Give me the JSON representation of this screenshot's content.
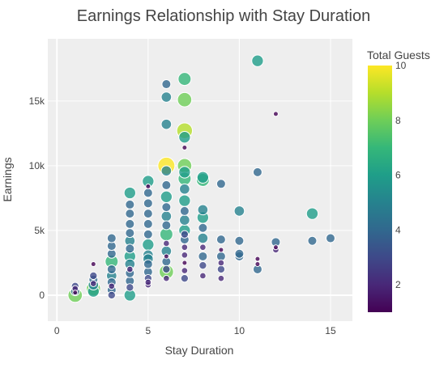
{
  "chart_data": {
    "type": "scatter",
    "title": "Earnings Relationship with Stay Duration",
    "xlabel": "Stay Duration",
    "ylabel": "Earnings",
    "xlim": [
      -0.5,
      16.2
    ],
    "ylim": [
      -2000,
      19800
    ],
    "x_ticks": [
      0,
      5,
      10,
      15
    ],
    "y_ticks": [
      {
        "value": 0,
        "label": "0"
      },
      {
        "value": 5000,
        "label": "5k"
      },
      {
        "value": 10000,
        "label": "10k"
      },
      {
        "value": 15000,
        "label": "15k"
      }
    ],
    "grid": true,
    "plot_background": "#eeeeee",
    "colorbar": {
      "title": "Total Guests",
      "min": 1,
      "max": 10,
      "ticks": [
        2,
        4,
        6,
        8,
        10
      ],
      "colorscale": "viridis"
    },
    "marker_size_encodes": "Total Guests",
    "points": [
      {
        "x": 1,
        "y": 0,
        "g": 8
      },
      {
        "x": 1,
        "y": 300,
        "g": 4
      },
      {
        "x": 1,
        "y": 500,
        "g": 2
      },
      {
        "x": 1,
        "y": 700,
        "g": 3
      },
      {
        "x": 1,
        "y": 200,
        "g": 1
      },
      {
        "x": 2,
        "y": 500,
        "g": 8
      },
      {
        "x": 2,
        "y": 800,
        "g": 5
      },
      {
        "x": 2,
        "y": 1200,
        "g": 4
      },
      {
        "x": 2,
        "y": 1500,
        "g": 3
      },
      {
        "x": 2,
        "y": 900,
        "g": 2
      },
      {
        "x": 2,
        "y": 2400,
        "g": 1
      },
      {
        "x": 2,
        "y": 300,
        "g": 6
      },
      {
        "x": 3,
        "y": 0,
        "g": 3
      },
      {
        "x": 3,
        "y": 400,
        "g": 4
      },
      {
        "x": 3,
        "y": 1000,
        "g": 4
      },
      {
        "x": 3,
        "y": 1500,
        "g": 5
      },
      {
        "x": 3,
        "y": 2000,
        "g": 4
      },
      {
        "x": 3,
        "y": 2600,
        "g": 7
      },
      {
        "x": 3,
        "y": 3200,
        "g": 4
      },
      {
        "x": 3,
        "y": 3800,
        "g": 4
      },
      {
        "x": 3,
        "y": 4400,
        "g": 4
      },
      {
        "x": 3,
        "y": 700,
        "g": 2
      },
      {
        "x": 4,
        "y": 0,
        "g": 6
      },
      {
        "x": 4,
        "y": 600,
        "g": 3
      },
      {
        "x": 4,
        "y": 1100,
        "g": 4
      },
      {
        "x": 4,
        "y": 1700,
        "g": 4
      },
      {
        "x": 4,
        "y": 2400,
        "g": 5
      },
      {
        "x": 4,
        "y": 3000,
        "g": 6
      },
      {
        "x": 4,
        "y": 3600,
        "g": 4
      },
      {
        "x": 4,
        "y": 4200,
        "g": 5
      },
      {
        "x": 4,
        "y": 4800,
        "g": 4
      },
      {
        "x": 4,
        "y": 5500,
        "g": 4
      },
      {
        "x": 4,
        "y": 6300,
        "g": 4
      },
      {
        "x": 4,
        "y": 7000,
        "g": 4
      },
      {
        "x": 4,
        "y": 7900,
        "g": 6
      },
      {
        "x": 4,
        "y": 2000,
        "g": 2
      },
      {
        "x": 5,
        "y": 800,
        "g": 2
      },
      {
        "x": 5,
        "y": 1300,
        "g": 3
      },
      {
        "x": 5,
        "y": 1800,
        "g": 4
      },
      {
        "x": 5,
        "y": 2400,
        "g": 4
      },
      {
        "x": 5,
        "y": 3100,
        "g": 5
      },
      {
        "x": 5,
        "y": 3900,
        "g": 6
      },
      {
        "x": 5,
        "y": 4700,
        "g": 4
      },
      {
        "x": 5,
        "y": 5500,
        "g": 4
      },
      {
        "x": 5,
        "y": 6300,
        "g": 4
      },
      {
        "x": 5,
        "y": 7100,
        "g": 4
      },
      {
        "x": 5,
        "y": 7900,
        "g": 4
      },
      {
        "x": 5,
        "y": 8800,
        "g": 6
      },
      {
        "x": 5,
        "y": 8400,
        "g": 1
      },
      {
        "x": 5,
        "y": 1000,
        "g": 2
      },
      {
        "x": 5,
        "y": 2800,
        "g": 5
      },
      {
        "x": 6,
        "y": 1300,
        "g": 2
      },
      {
        "x": 6,
        "y": 2000,
        "g": 3
      },
      {
        "x": 6,
        "y": 2600,
        "g": 4
      },
      {
        "x": 6,
        "y": 3400,
        "g": 5
      },
      {
        "x": 6,
        "y": 4000,
        "g": 2
      },
      {
        "x": 6,
        "y": 4700,
        "g": 7
      },
      {
        "x": 6,
        "y": 5400,
        "g": 4
      },
      {
        "x": 6,
        "y": 6100,
        "g": 5
      },
      {
        "x": 6,
        "y": 6800,
        "g": 4
      },
      {
        "x": 6,
        "y": 7600,
        "g": 6
      },
      {
        "x": 6,
        "y": 8500,
        "g": 4
      },
      {
        "x": 6,
        "y": 9600,
        "g": 5
      },
      {
        "x": 6,
        "y": 10000,
        "g": 10
      },
      {
        "x": 6,
        "y": 13200,
        "g": 5
      },
      {
        "x": 6,
        "y": 15300,
        "g": 5
      },
      {
        "x": 6,
        "y": 16300,
        "g": 4
      },
      {
        "x": 6,
        "y": 3000,
        "g": 1
      },
      {
        "x": 6,
        "y": 1800,
        "g": 8
      },
      {
        "x": 7,
        "y": 1300,
        "g": 3
      },
      {
        "x": 7,
        "y": 1900,
        "g": 2
      },
      {
        "x": 7,
        "y": 2500,
        "g": 1
      },
      {
        "x": 7,
        "y": 3100,
        "g": 2
      },
      {
        "x": 7,
        "y": 3700,
        "g": 2
      },
      {
        "x": 7,
        "y": 4300,
        "g": 4
      },
      {
        "x": 7,
        "y": 5000,
        "g": 6
      },
      {
        "x": 7,
        "y": 5800,
        "g": 5
      },
      {
        "x": 7,
        "y": 6500,
        "g": 4
      },
      {
        "x": 7,
        "y": 7300,
        "g": 6
      },
      {
        "x": 7,
        "y": 8200,
        "g": 5
      },
      {
        "x": 7,
        "y": 9000,
        "g": 7
      },
      {
        "x": 7,
        "y": 9500,
        "g": 6
      },
      {
        "x": 7,
        "y": 10000,
        "g": 8
      },
      {
        "x": 7,
        "y": 11400,
        "g": 1
      },
      {
        "x": 7,
        "y": 12200,
        "g": 6
      },
      {
        "x": 7,
        "y": 12700,
        "g": 9
      },
      {
        "x": 7,
        "y": 15100,
        "g": 8
      },
      {
        "x": 7,
        "y": 16700,
        "g": 7
      },
      {
        "x": 7,
        "y": 4700,
        "g": 3
      },
      {
        "x": 8,
        "y": 1500,
        "g": 2
      },
      {
        "x": 8,
        "y": 2300,
        "g": 3
      },
      {
        "x": 8,
        "y": 3000,
        "g": 4
      },
      {
        "x": 8,
        "y": 3700,
        "g": 2
      },
      {
        "x": 8,
        "y": 4400,
        "g": 5
      },
      {
        "x": 8,
        "y": 5200,
        "g": 4
      },
      {
        "x": 8,
        "y": 6000,
        "g": 6
      },
      {
        "x": 8,
        "y": 6600,
        "g": 5
      },
      {
        "x": 8,
        "y": 9100,
        "g": 6
      },
      {
        "x": 8,
        "y": 8900,
        "g": 7
      },
      {
        "x": 9,
        "y": 1300,
        "g": 2
      },
      {
        "x": 9,
        "y": 2000,
        "g": 3
      },
      {
        "x": 9,
        "y": 2500,
        "g": 2
      },
      {
        "x": 9,
        "y": 3000,
        "g": 4
      },
      {
        "x": 9,
        "y": 3500,
        "g": 1
      },
      {
        "x": 9,
        "y": 4300,
        "g": 4
      },
      {
        "x": 9,
        "y": 8600,
        "g": 4
      },
      {
        "x": 10,
        "y": 3000,
        "g": 4
      },
      {
        "x": 10,
        "y": 3200,
        "g": 4
      },
      {
        "x": 10,
        "y": 4200,
        "g": 4
      },
      {
        "x": 10,
        "y": 6500,
        "g": 5
      },
      {
        "x": 11,
        "y": 2000,
        "g": 4
      },
      {
        "x": 11,
        "y": 2400,
        "g": 1
      },
      {
        "x": 11,
        "y": 2800,
        "g": 1
      },
      {
        "x": 11,
        "y": 9500,
        "g": 4
      },
      {
        "x": 11,
        "y": 18100,
        "g": 6
      },
      {
        "x": 12,
        "y": 3500,
        "g": 2
      },
      {
        "x": 12,
        "y": 3700,
        "g": 1
      },
      {
        "x": 12,
        "y": 4100,
        "g": 4
      },
      {
        "x": 12,
        "y": 14000,
        "g": 1
      },
      {
        "x": 14,
        "y": 4200,
        "g": 4
      },
      {
        "x": 14,
        "y": 6300,
        "g": 6
      },
      {
        "x": 15,
        "y": 4400,
        "g": 4
      }
    ]
  }
}
